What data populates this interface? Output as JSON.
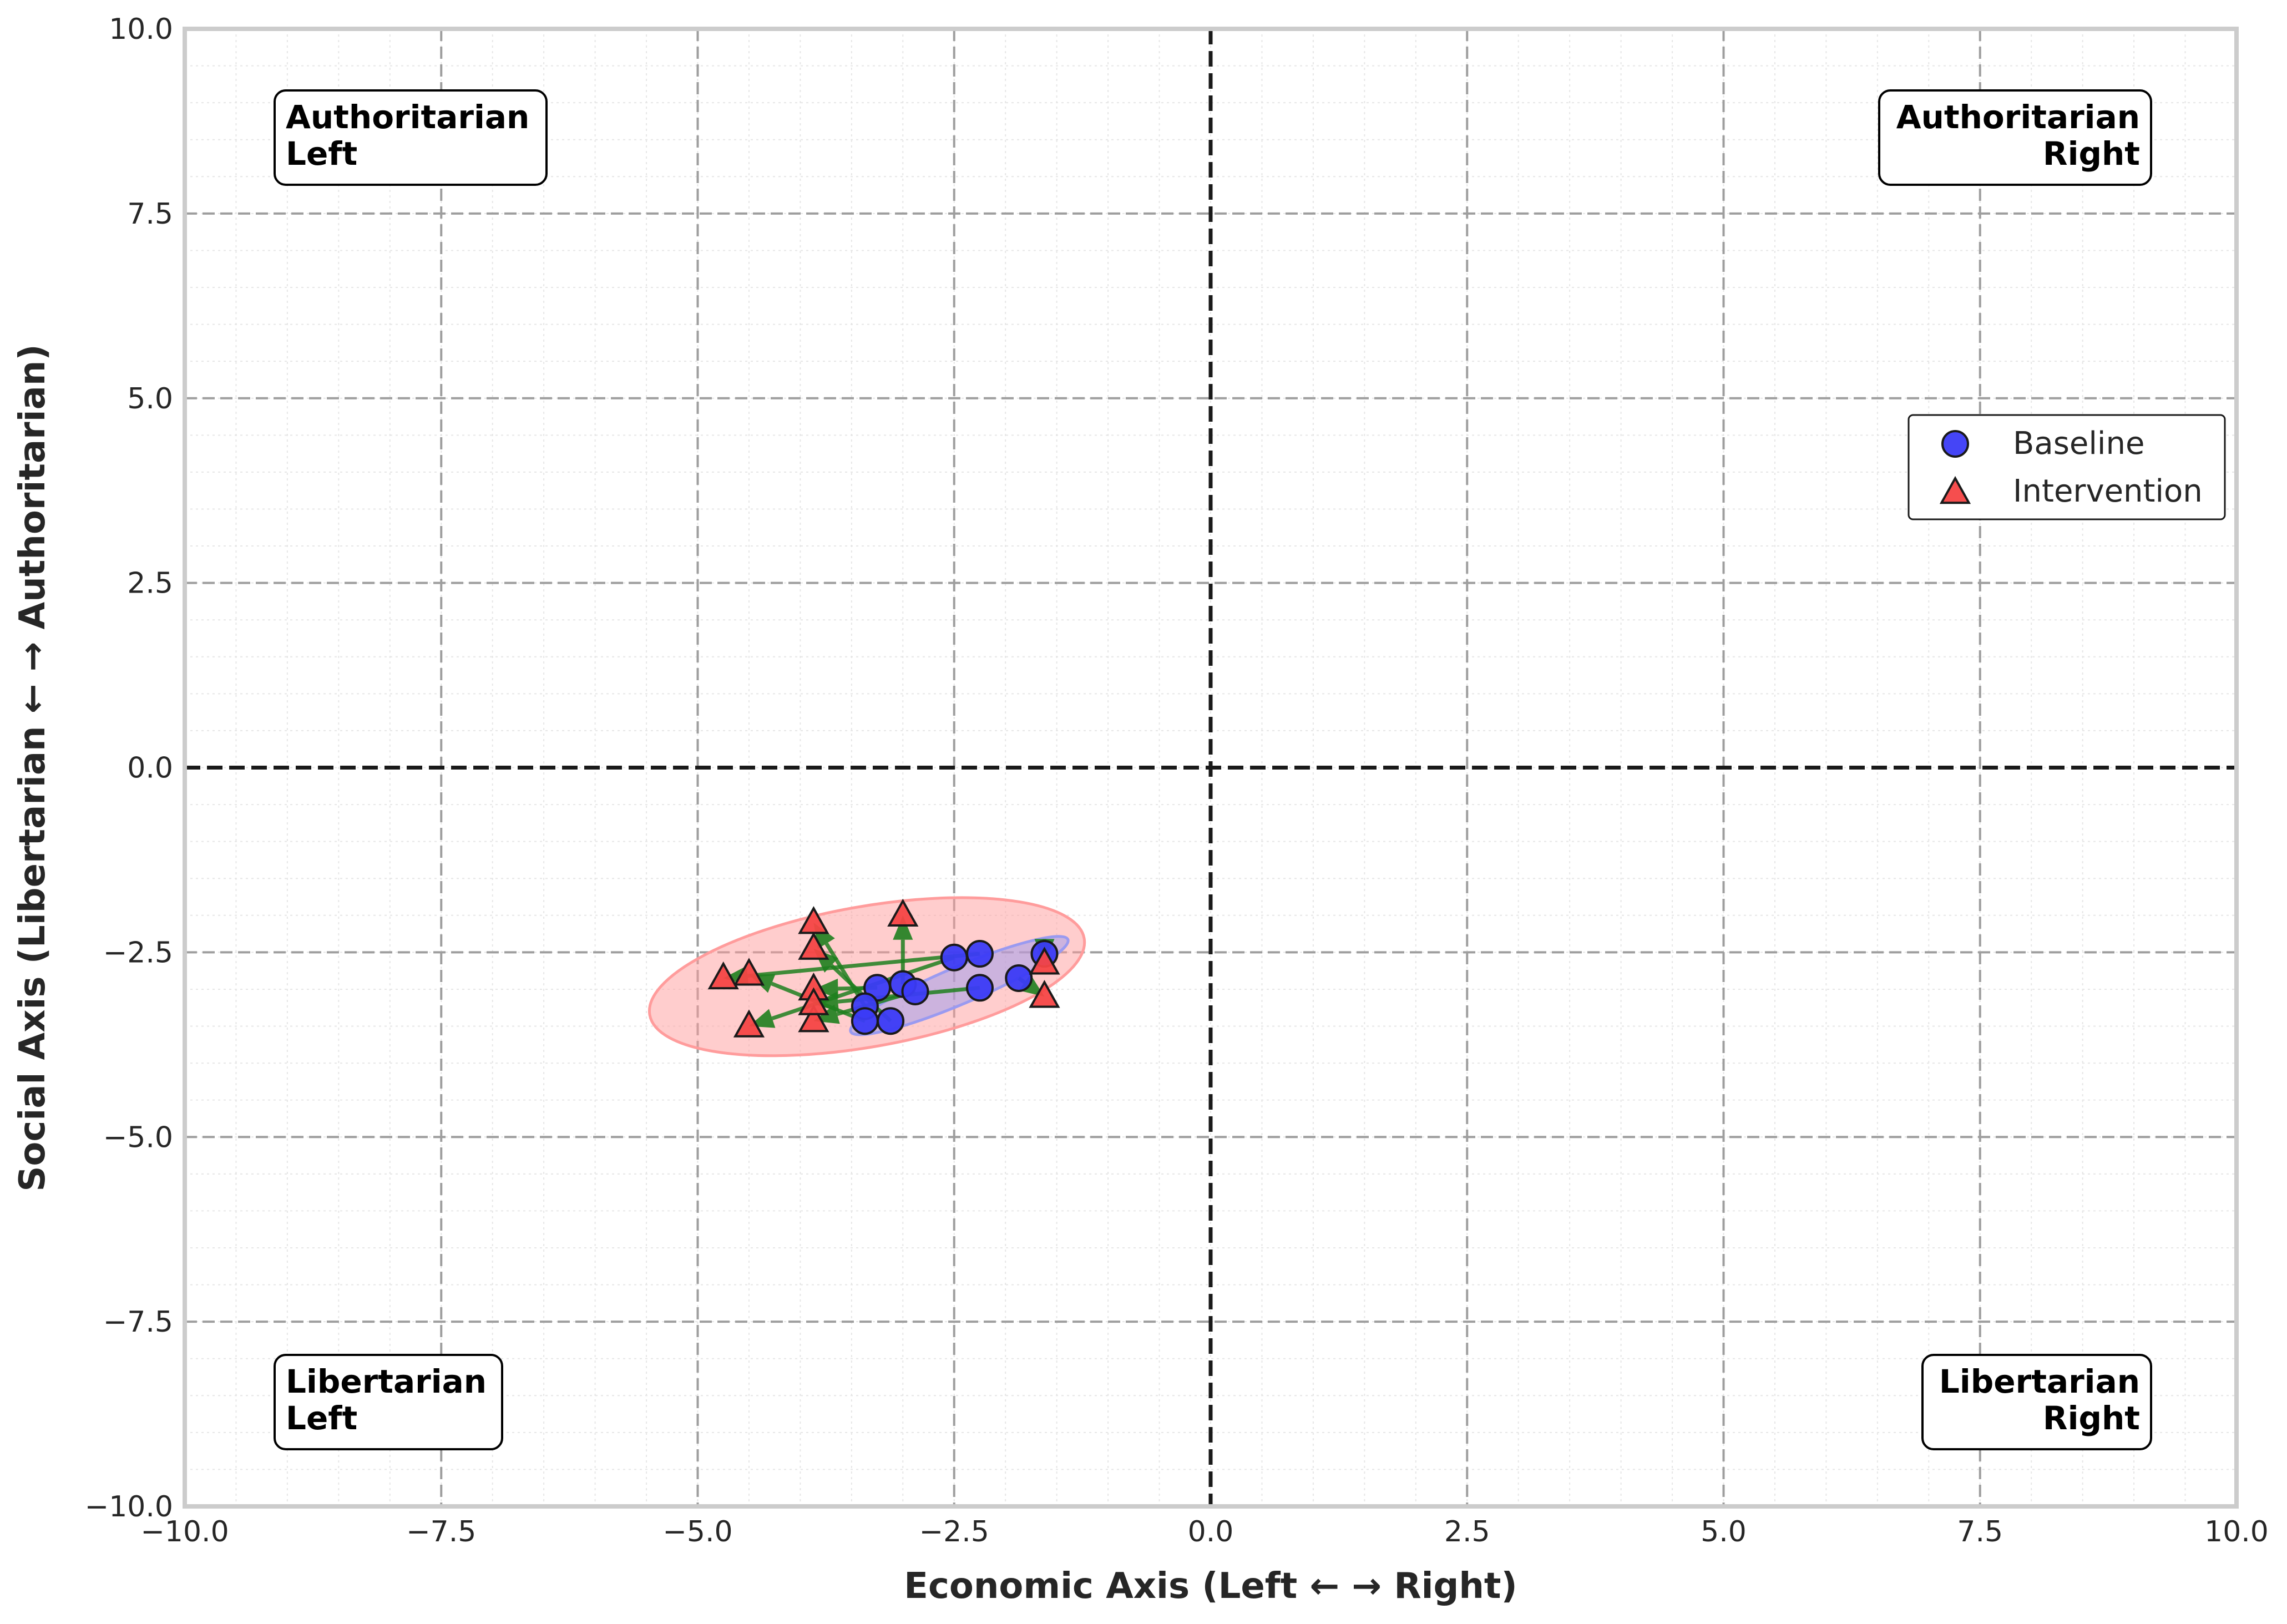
{
  "chart_data": {
    "type": "scatter",
    "title": "",
    "xlabel": "Economic Axis (Left ← → Right)",
    "ylabel": "Social Axis (Libertarian ← → Authoritarian)",
    "xlim": [
      -10,
      10
    ],
    "ylim": [
      -10,
      10
    ],
    "xticks": [
      -10,
      -7.5,
      -5,
      -2.5,
      0,
      2.5,
      5,
      7.5,
      10
    ],
    "yticks": [
      -10,
      -7.5,
      -5,
      -2.5,
      0,
      2.5,
      5,
      7.5,
      10
    ],
    "xtick_labels": [
      "−10.0",
      "−7.5",
      "−5.0",
      "−2.5",
      "0.0",
      "2.5",
      "5.0",
      "7.5",
      "10.0"
    ],
    "ytick_labels": [
      "−10.0",
      "−7.5",
      "−5.0",
      "−2.5",
      "0.0",
      "2.5",
      "5.0",
      "7.5",
      "10.0"
    ],
    "grid": true,
    "legend_position": "right",
    "quadrant_labels": [
      {
        "lines": [
          "Authoritarian",
          "Left"
        ],
        "align": "left",
        "corner": "top-left"
      },
      {
        "lines": [
          "Authoritarian",
          "Right"
        ],
        "align": "right",
        "corner": "top-right"
      },
      {
        "lines": [
          "Libertarian",
          "Left"
        ],
        "align": "left",
        "corner": "bottom-left"
      },
      {
        "lines": [
          "Libertarian",
          "Right"
        ],
        "align": "right",
        "corner": "bottom-right"
      }
    ],
    "series": [
      {
        "name": "Baseline",
        "marker": "circle",
        "color": "#3b3bf5",
        "points": [
          [
            -3.25,
            -2.98
          ],
          [
            -3.0,
            -2.93
          ],
          [
            -2.88,
            -3.03
          ],
          [
            -3.37,
            -3.23
          ],
          [
            -3.37,
            -3.43
          ],
          [
            -3.12,
            -3.43
          ],
          [
            -2.5,
            -2.57
          ],
          [
            -2.25,
            -2.52
          ],
          [
            -2.25,
            -2.98
          ],
          [
            -1.87,
            -2.85
          ],
          [
            -1.62,
            -2.52
          ]
        ]
      },
      {
        "name": "Intervention",
        "marker": "triangle",
        "color": "#f54545",
        "points": [
          [
            -3.87,
            -3.0
          ],
          [
            -3.0,
            -2.0
          ],
          [
            -3.87,
            -3.43
          ],
          [
            -3.87,
            -2.1
          ],
          [
            -4.5,
            -2.8
          ],
          [
            -3.87,
            -2.45
          ],
          [
            -4.5,
            -3.5
          ],
          [
            -4.75,
            -2.85
          ],
          [
            -3.87,
            -3.2
          ],
          [
            -1.62,
            -3.1
          ],
          [
            -1.62,
            -2.65
          ]
        ]
      }
    ],
    "arrows_color": "#1e7f1e",
    "ellipses": [
      {
        "series": "Intervention",
        "center": [
          -3.35,
          -2.83
        ],
        "rx_data": 2.15,
        "ry_data": 0.95,
        "angle_deg": 10,
        "color": "#ff9c9c"
      },
      {
        "series": "Baseline",
        "center": [
          -2.45,
          -2.95
        ],
        "rx_data": 1.15,
        "ry_data": 0.25,
        "angle_deg": 23,
        "color": "#9a9af0"
      }
    ]
  }
}
